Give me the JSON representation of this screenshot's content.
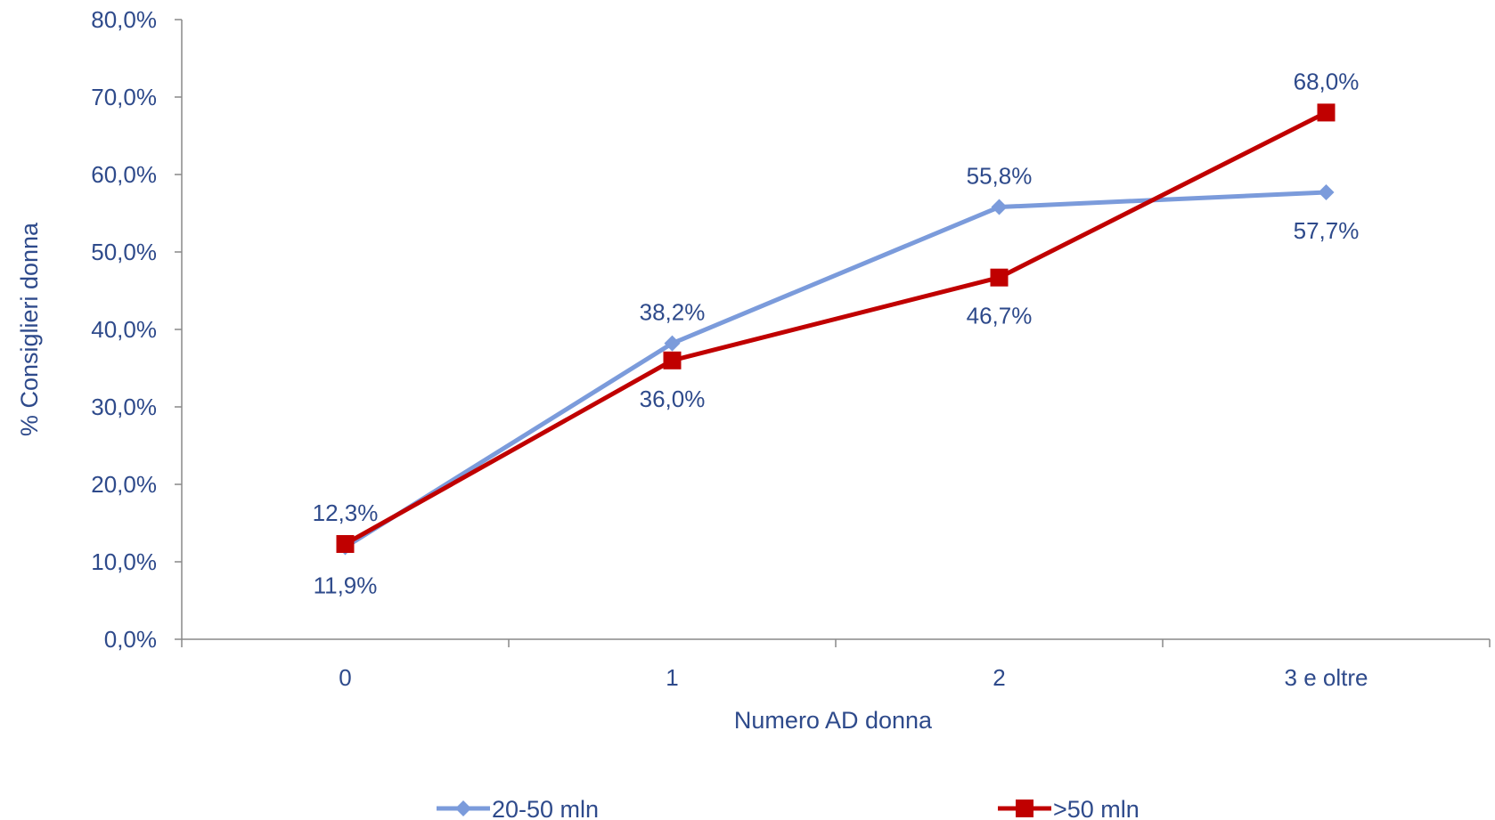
{
  "chart_data": {
    "type": "line",
    "categories": [
      "0",
      "1",
      "2",
      "3 e oltre"
    ],
    "series": [
      {
        "name": "20-50 mln",
        "values": [
          11.9,
          38.2,
          55.8,
          57.7
        ],
        "labels": [
          "11,9%",
          "38,2%",
          "55,8%",
          "57,7%"
        ],
        "color": "#7b9bdb",
        "marker": "diamond"
      },
      {
        "name": ">50 mln",
        "values": [
          12.3,
          36.0,
          46.7,
          68.0
        ],
        "labels": [
          "12,3%",
          "36,0%",
          "46,7%",
          "68,0%"
        ],
        "color": "#c00000",
        "marker": "square"
      }
    ],
    "xlabel": "Numero AD donna",
    "ylabel": "% Consiglieri donna",
    "ylim": [
      0,
      80
    ],
    "yticks": [
      0,
      10,
      20,
      30,
      40,
      50,
      60,
      70,
      80
    ],
    "ytick_labels": [
      "0,0%",
      "10,0%",
      "20,0%",
      "30,0%",
      "40,0%",
      "50,0%",
      "60,0%",
      "70,0%",
      "80,0%"
    ],
    "grid": false,
    "legend_position": "bottom",
    "text_color": "#2e4a8b",
    "axis_color": "#888888"
  }
}
